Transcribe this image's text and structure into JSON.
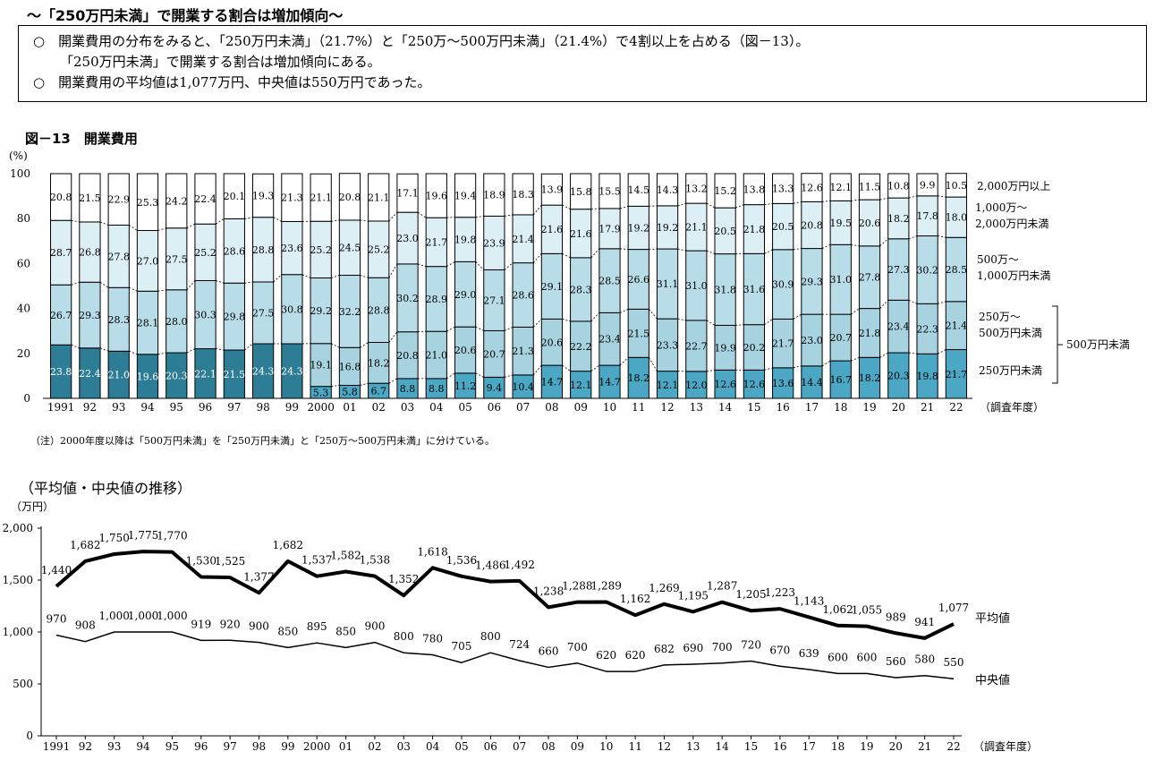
{
  "heading": "～「250万円未満」で開業する割合は増加傾向～",
  "summary": {
    "line1": "○　開業費用の分布をみると、「250万円未満」（21.7%）と「250万～500万円未満」（21.4%）で4割以上を占める（図－13）。",
    "line2": "「250万円未満」で開業する割合は増加傾向にある。",
    "line3": "○　開業費用の平均値は1,077万円、中央値は550万円であった。"
  },
  "figure_title": "図－13　開業費用",
  "note": "（注）2000年度以降は「500万円未満」を「250万円未満」と「250万～500万円未満」に分けている。",
  "line_chart_title": "（平均値・中央値の推移）",
  "chart_data": [
    {
      "type": "bar",
      "stacked": true,
      "ylabel": "(%)",
      "xlabel": "（調査年度）",
      "ylim": [
        0,
        100
      ],
      "yticks": [
        0,
        20,
        40,
        60,
        80,
        100
      ],
      "categories": [
        "1991",
        "92",
        "93",
        "94",
        "95",
        "96",
        "97",
        "98",
        "99",
        "2000",
        "01",
        "02",
        "03",
        "04",
        "05",
        "06",
        "07",
        "08",
        "09",
        "10",
        "11",
        "12",
        "13",
        "14",
        "15",
        "16",
        "17",
        "18",
        "19",
        "20",
        "21",
        "22"
      ],
      "series": [
        {
          "name": "500万円未満",
          "color_early": "#2e7d96",
          "values": [
            23.8,
            22.4,
            21.0,
            19.6,
            20.3,
            22.1,
            21.5,
            24.3,
            24.3,
            null,
            null,
            null,
            null,
            null,
            null,
            null,
            null,
            null,
            null,
            null,
            null,
            null,
            null,
            null,
            null,
            null,
            null,
            null,
            null,
            null,
            null,
            null
          ]
        },
        {
          "name": "250万円未満",
          "color": "#4ba7c4",
          "values": [
            null,
            null,
            null,
            null,
            null,
            null,
            null,
            null,
            null,
            5.3,
            5.8,
            6.7,
            8.8,
            8.8,
            11.2,
            9.4,
            10.4,
            14.7,
            12.1,
            14.7,
            18.2,
            12.1,
            12.0,
            12.6,
            12.6,
            13.6,
            14.4,
            16.7,
            18.2,
            20.3,
            19.8,
            21.7
          ]
        },
        {
          "name": "250万～500万円未満",
          "color": "#a7d3e1",
          "values": [
            null,
            null,
            null,
            null,
            null,
            null,
            null,
            null,
            null,
            19.1,
            16.8,
            18.2,
            20.8,
            21.0,
            20.6,
            20.7,
            21.3,
            20.6,
            22.2,
            23.4,
            21.5,
            23.3,
            22.7,
            19.9,
            20.2,
            21.7,
            23.0,
            20.7,
            21.8,
            23.4,
            22.3,
            21.4
          ]
        },
        {
          "name": "500万～1,000万円未満",
          "color": "#b9dde8",
          "values": [
            26.7,
            29.3,
            28.3,
            28.1,
            28.0,
            30.3,
            29.8,
            27.5,
            30.8,
            29.2,
            32.2,
            28.8,
            30.2,
            28.9,
            29.0,
            27.1,
            28.6,
            29.1,
            28.3,
            28.5,
            26.6,
            31.1,
            31.0,
            31.8,
            31.6,
            30.9,
            29.3,
            31.0,
            27.8,
            27.3,
            30.2,
            28.5
          ]
        },
        {
          "name": "1,000万～2,000万円未満",
          "color": "#dbeff5",
          "values": [
            28.7,
            26.8,
            27.8,
            27.0,
            27.5,
            25.2,
            28.6,
            28.8,
            23.6,
            25.2,
            24.5,
            25.2,
            23.0,
            21.7,
            19.8,
            23.9,
            21.4,
            21.6,
            21.6,
            17.9,
            19.2,
            19.2,
            21.1,
            20.5,
            21.8,
            20.5,
            20.8,
            19.5,
            20.6,
            18.2,
            17.8,
            18.0
          ]
        },
        {
          "name": "2,000万円以上",
          "color": "#ffffff",
          "values": [
            20.8,
            21.5,
            22.9,
            25.3,
            24.2,
            22.4,
            20.1,
            19.3,
            21.3,
            21.1,
            20.8,
            21.1,
            17.1,
            19.6,
            19.4,
            18.9,
            18.3,
            13.9,
            15.8,
            15.5,
            14.5,
            14.3,
            13.2,
            15.2,
            13.8,
            13.3,
            12.6,
            12.1,
            11.5,
            10.8,
            9.9,
            10.5
          ]
        }
      ],
      "legend_labels": {
        "l1": "2,000万円以上",
        "l2a": "1,000万～",
        "l2b": "2,000万円未満",
        "l3a": "500万～",
        "l3b": "1,000万円未満",
        "l4a": "250万～",
        "l4b": "500万円未満",
        "l5": "250万円未満",
        "bracket": "500万円未満"
      }
    },
    {
      "type": "line",
      "ylabel": "（万円）",
      "xlabel": "（調査年度）",
      "ylim": [
        0,
        2000
      ],
      "yticks": [
        0,
        500,
        1000,
        1500,
        2000
      ],
      "ytick_labels": [
        "0",
        "500",
        "1,000",
        "1,500",
        "2,000"
      ],
      "categories": [
        "1991",
        "92",
        "93",
        "94",
        "95",
        "96",
        "97",
        "98",
        "99",
        "2000",
        "01",
        "02",
        "03",
        "04",
        "05",
        "06",
        "07",
        "08",
        "09",
        "10",
        "11",
        "12",
        "13",
        "14",
        "15",
        "16",
        "17",
        "18",
        "19",
        "20",
        "21",
        "22"
      ],
      "series": [
        {
          "name": "平均値",
          "values": [
            1440,
            1682,
            1750,
            1775,
            1770,
            1530,
            1525,
            1377,
            1682,
            1537,
            1582,
            1538,
            1352,
            1618,
            1536,
            1486,
            1492,
            1238,
            1288,
            1289,
            1162,
            1269,
            1195,
            1287,
            1205,
            1223,
            1143,
            1062,
            1055,
            989,
            941,
            1077
          ]
        },
        {
          "name": "中央値",
          "values": [
            970,
            908,
            1000,
            1000,
            1000,
            919,
            920,
            900,
            850,
            895,
            850,
            900,
            800,
            780,
            705,
            800,
            724,
            660,
            700,
            620,
            620,
            682,
            690,
            700,
            720,
            670,
            639,
            600,
            600,
            560,
            580,
            550
          ]
        }
      ]
    }
  ]
}
